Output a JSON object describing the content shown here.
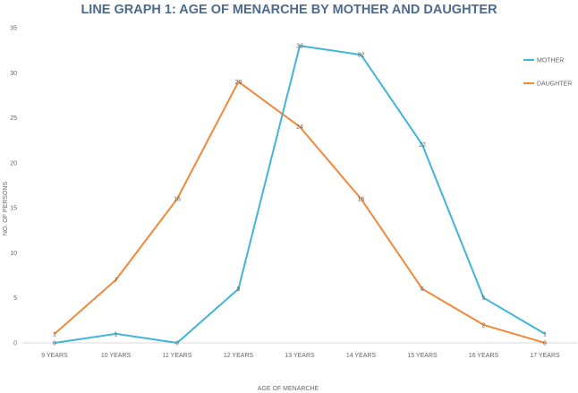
{
  "chart_data": {
    "type": "line",
    "title": "LINE GRAPH 1: AGE OF MENARCHE BY MOTHER AND DAUGHTER",
    "xlabel": "AGE OF MENARCHE",
    "ylabel": "NO. OF PERSONS",
    "categories": [
      "9 YEARS",
      "10 YEARS",
      "11 YEARS",
      "12 YEARS",
      "13 YEARS",
      "14 YEARS",
      "15 YEARS",
      "16 YEARS",
      "17 YEARS"
    ],
    "yticks": [
      0,
      5,
      10,
      15,
      20,
      25,
      30,
      35
    ],
    "ylim": [
      0,
      35
    ],
    "grid": false,
    "legend_position": "right",
    "series": [
      {
        "name": "MOTHER",
        "color": "#41b4d9",
        "values": [
          0,
          1,
          0,
          6,
          33,
          32,
          22,
          5,
          1
        ]
      },
      {
        "name": "DAUGHTER",
        "color": "#f3883a",
        "values": [
          1,
          7,
          16,
          29,
          24,
          16,
          6,
          2,
          0
        ]
      }
    ]
  }
}
